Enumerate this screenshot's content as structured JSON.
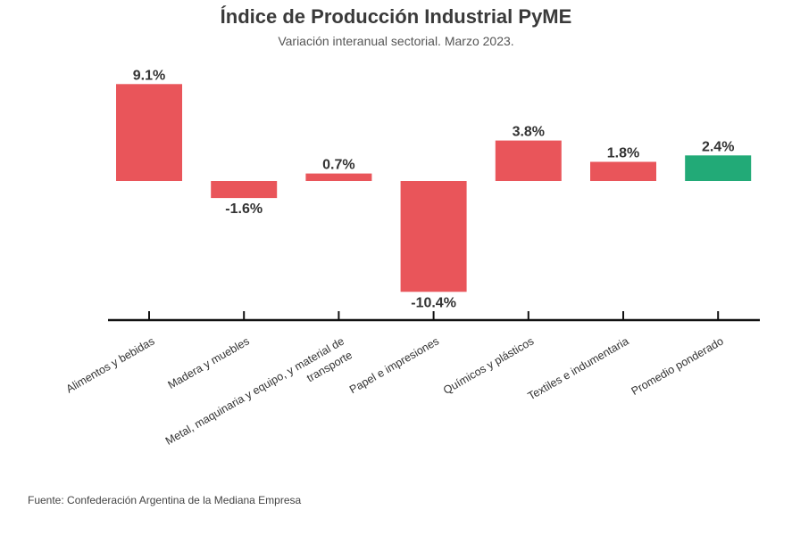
{
  "chart_data": {
    "type": "bar",
    "title": "Índice de Producción Industrial PyME",
    "subtitle": "Variación interanual sectorial. Marzo 2023.",
    "source": "Fuente: Confederación Argentina de la Mediana Empresa",
    "categories": [
      [
        "Alimentos y bebidas"
      ],
      [
        "Madera y muebles"
      ],
      [
        "Metal, maquinaria y equipo, y material de",
        "transporte"
      ],
      [
        "Papel e impresiones"
      ],
      [
        "Químicos y plásticos"
      ],
      [
        "Textiles e indumentaria"
      ],
      [
        "Promedio ponderado"
      ]
    ],
    "values": [
      9.1,
      -1.6,
      0.7,
      -10.4,
      3.8,
      1.8,
      2.4
    ],
    "value_labels": [
      "9.1%",
      "-1.6%",
      "0.7%",
      "-10.4%",
      "3.8%",
      "1.8%",
      "2.4%"
    ],
    "colors": [
      "#e9555a",
      "#e9555a",
      "#e9555a",
      "#e9555a",
      "#e9555a",
      "#e9555a",
      "#22aa77"
    ],
    "xlabel": "",
    "ylabel": "",
    "ylim": [
      -10.4,
      9.1
    ],
    "grid": false,
    "legend": "none"
  }
}
